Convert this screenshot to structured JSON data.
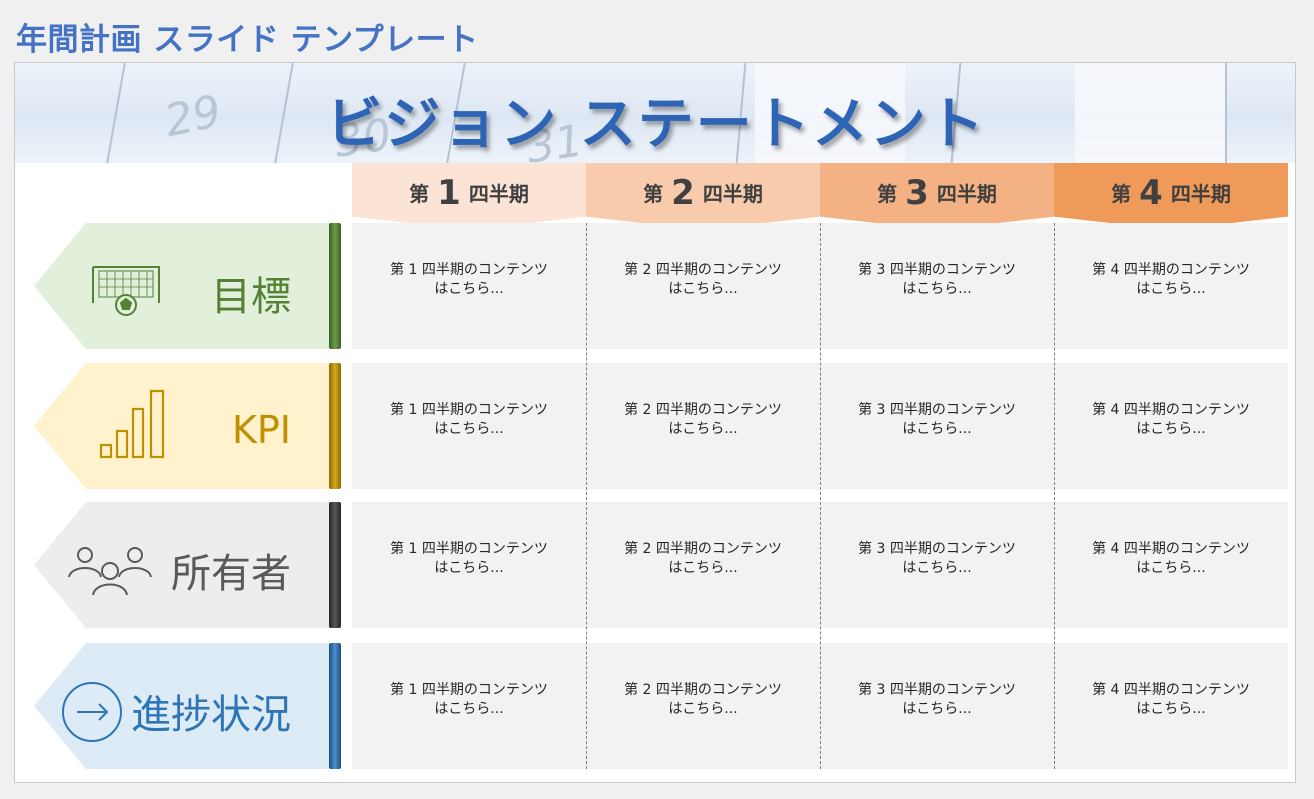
{
  "page_title": "年間計画 スライド テンプレート",
  "banner": {
    "title": "ビジョン ステートメント",
    "deco_numbers": [
      "29",
      "30",
      "31"
    ]
  },
  "quarters": [
    {
      "pre": "第",
      "num": "1",
      "post": "四半期",
      "color": "#fbe3d6"
    },
    {
      "pre": "第",
      "num": "2",
      "post": "四半期",
      "color": "#f8cbad"
    },
    {
      "pre": "第",
      "num": "3",
      "post": "四半期",
      "color": "#f4b183"
    },
    {
      "pre": "第",
      "num": "4",
      "post": "四半期",
      "color": "#f09a5a"
    }
  ],
  "rows": [
    {
      "label": "目標",
      "icon": "soccer-goal-icon",
      "bg": "#e2efda",
      "bar": "#548235",
      "text_color": "#548235"
    },
    {
      "label": "KPI",
      "icon": "bar-chart-icon",
      "bg": "#fff2cc",
      "bar": "#bf9000",
      "text_color": "#bf9000"
    },
    {
      "label": "所有者",
      "icon": "people-icon",
      "bg": "#ededed",
      "bar": "#404040",
      "text_color": "#595959"
    },
    {
      "label": "進捗状況",
      "icon": "right-arrow-circle-icon",
      "bg": "#ddebf7",
      "bar": "#2e75b6",
      "text_color": "#2e75b6"
    }
  ],
  "cells": [
    [
      "第 1 四半期のコンテンツ",
      "第 2 四半期のコンテンツ",
      "第 3 四半期のコンテンツ",
      "第 4 四半期のコンテンツ"
    ],
    [
      "第 1 四半期のコンテンツ",
      "第 2 四半期のコンテンツ",
      "第 3 四半期のコンテンツ",
      "第 4 四半期のコンテンツ"
    ],
    [
      "第 1 四半期のコンテンツ",
      "第 2 四半期のコンテンツ",
      "第 3 四半期のコンテンツ",
      "第 4 四半期のコンテンツ"
    ],
    [
      "第 1 四半期のコンテンツ",
      "第 2 四半期のコンテンツ",
      "第 3 四半期のコンテンツ",
      "第 4 四半期のコンテンツ"
    ]
  ],
  "cell_suffix": "はこちら..."
}
